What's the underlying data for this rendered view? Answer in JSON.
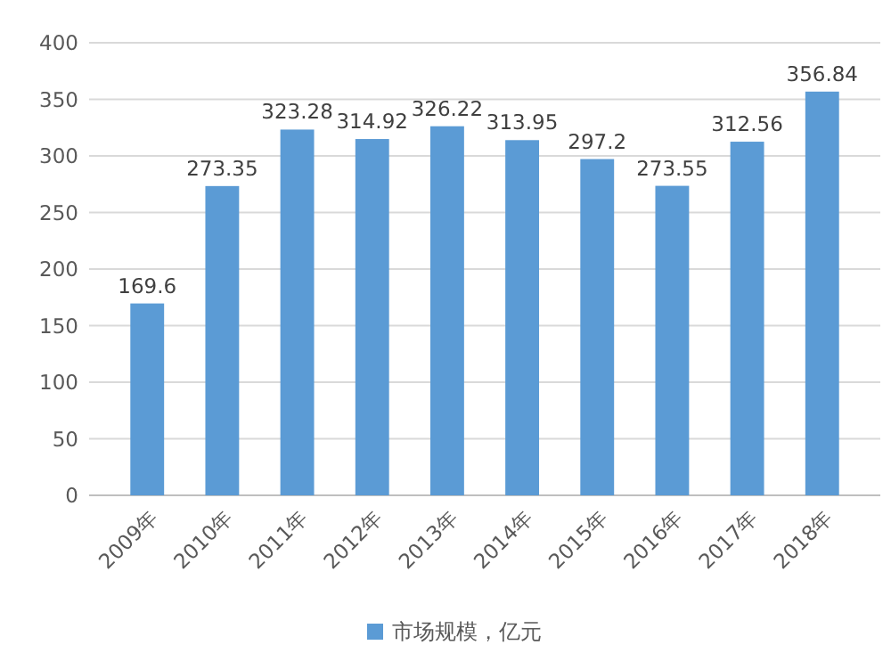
{
  "chart_data": {
    "type": "bar",
    "categories": [
      "2009年",
      "2010年",
      "2011年",
      "2012年",
      "2013年",
      "2014年",
      "2015年",
      "2016年",
      "2017年",
      "2018年"
    ],
    "series": [
      {
        "name": "市场规模，亿元",
        "color": "#5b9bd5",
        "values": [
          169.6,
          273.35,
          323.28,
          314.92,
          326.22,
          313.95,
          297.2,
          273.55,
          312.56,
          356.84
        ]
      }
    ],
    "data_labels": true,
    "ylim": [
      0,
      400
    ],
    "yticks": [
      0,
      50,
      100,
      150,
      200,
      250,
      300,
      350,
      400
    ],
    "grid": "y",
    "legend": "bottom"
  }
}
